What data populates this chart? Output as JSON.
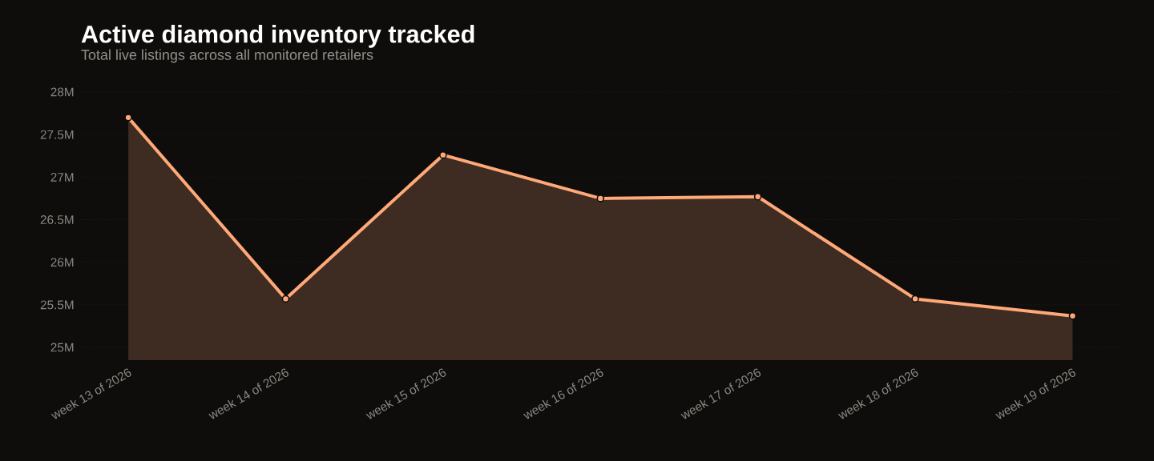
{
  "chart_data": {
    "type": "area",
    "title": "Active diamond inventory tracked",
    "subtitle": "Total live listings across all monitored retailers",
    "categories": [
      "week 13 of 2026",
      "week 14 of 2026",
      "week 15 of 2026",
      "week 16 of 2026",
      "week 17 of 2026",
      "week 18 of 2026",
      "week 19 of 2026"
    ],
    "series": [
      {
        "color": "#ffa878",
        "values": [
          27.7,
          25.57,
          27.26,
          26.75,
          26.77,
          25.57,
          25.37
        ]
      }
    ],
    "ylim": [
      25,
      28
    ],
    "yticks": [
      {
        "value": 25,
        "label": "25M"
      },
      {
        "value": 25.5,
        "label": "25.5M"
      },
      {
        "value": 26,
        "label": "26M"
      },
      {
        "value": 26.5,
        "label": "26.5M"
      },
      {
        "value": 27,
        "label": "27M"
      },
      {
        "value": 27.5,
        "label": "27.5M"
      },
      {
        "value": 28,
        "label": "28M"
      }
    ],
    "grid": "y",
    "marker": "circle",
    "line_style": "solid"
  }
}
